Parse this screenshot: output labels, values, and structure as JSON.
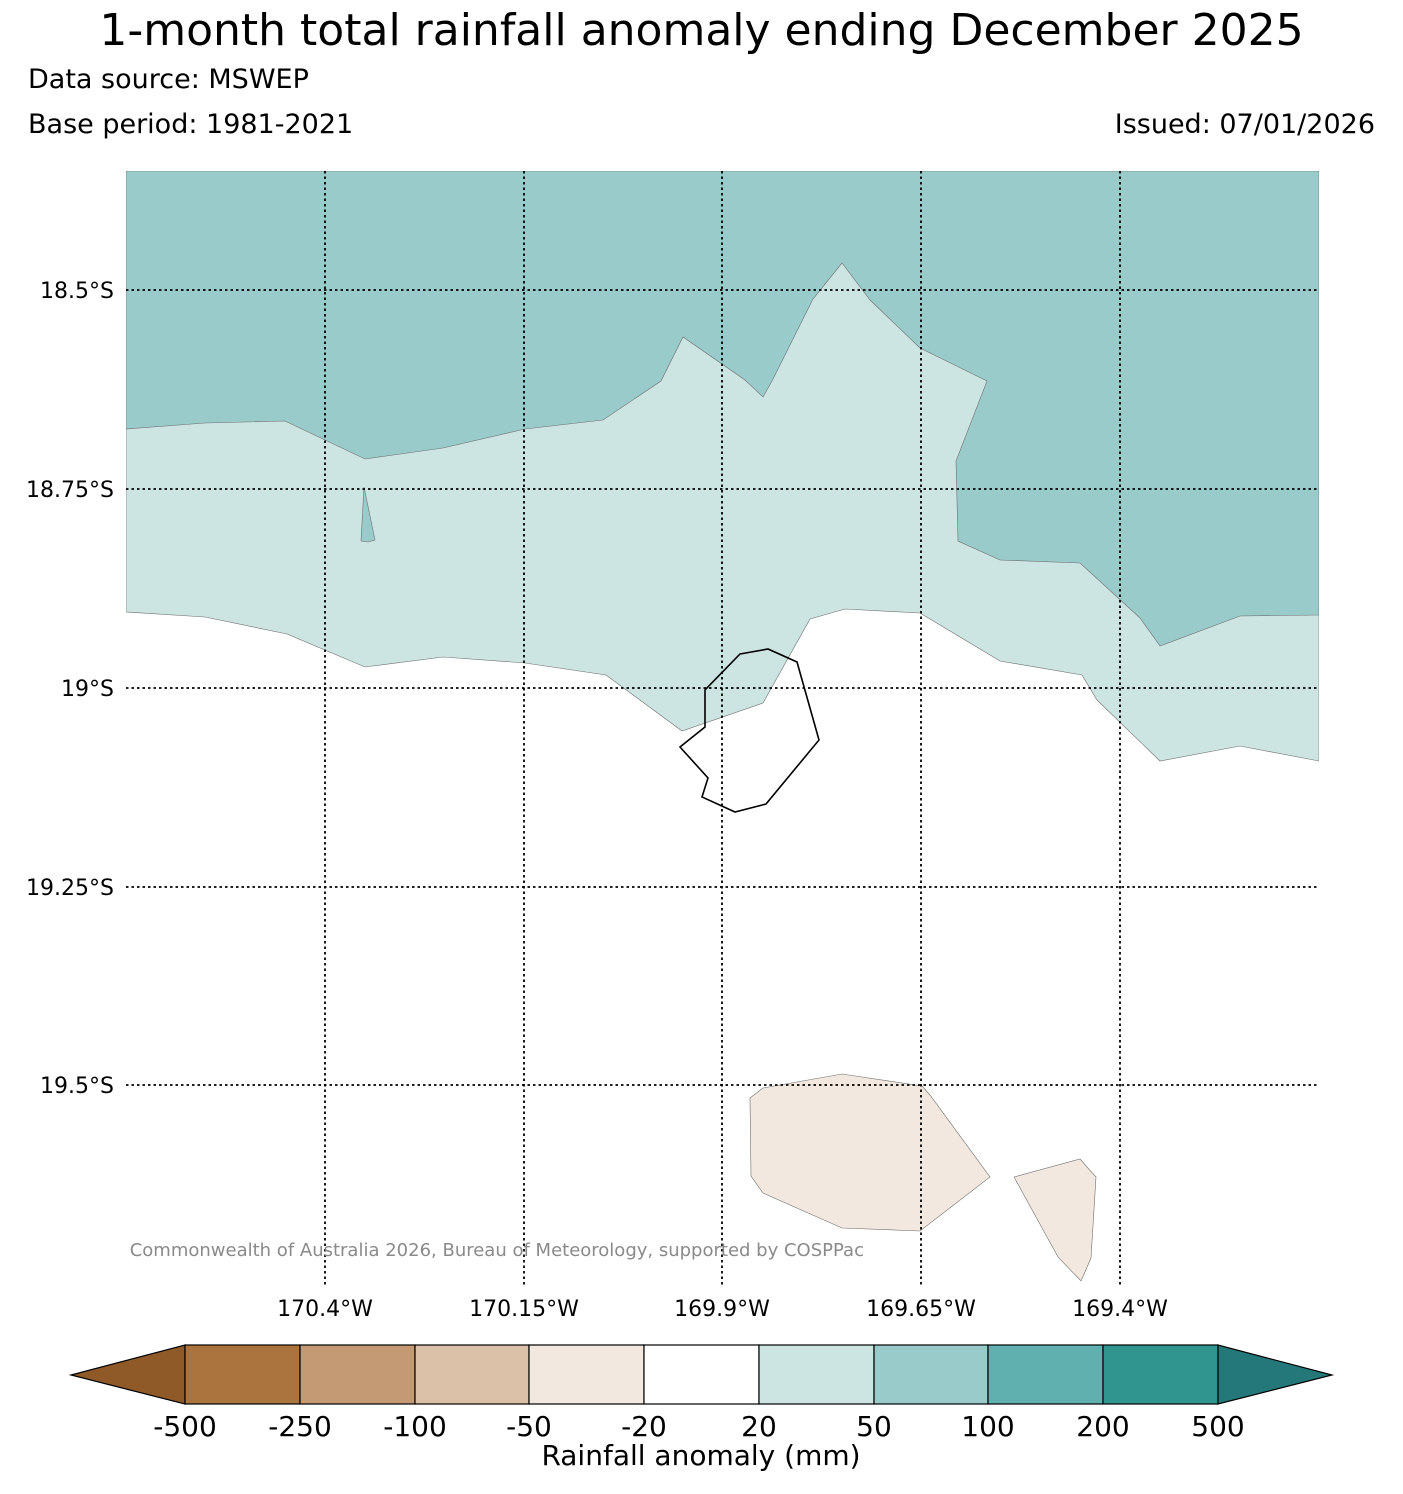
{
  "header": {
    "title": "1-month total rainfall anomaly ending December 2025",
    "source": "Data source: MSWEP",
    "base_period": "Base period: 1981-2021",
    "issued": "Issued: 07/01/2026"
  },
  "map": {
    "lat_labels": [
      "18.5°S",
      "18.75°S",
      "19°S",
      "19.25°S",
      "19.5°S"
    ],
    "lon_labels": [
      "170.4°W",
      "170.15°W",
      "169.9°W",
      "169.65°W",
      "169.4°W"
    ],
    "copyright": "© Commonwealth of Australia 2026, Bureau of Meteorology, supported by COSPPac",
    "colors": {
      "anomaly_20_50": "#cce5e3",
      "anomaly_50_100": "#9acbcb",
      "anomaly_neg20_neg50": "#f2e8df",
      "coastline": "#000000",
      "gridline": "#000000"
    }
  },
  "colorbar": {
    "label": "Rainfall anomaly (mm)",
    "ticks": [
      "-500",
      "-250",
      "-100",
      "-50",
      "-20",
      "20",
      "50",
      "100",
      "200",
      "500"
    ],
    "colors": [
      "#8f5a28",
      "#ab743e",
      "#c49a74",
      "#dbc1a8",
      "#f2e8df",
      "#ffffff",
      "#cce5e3",
      "#9acbcb",
      "#60b0b0",
      "#30958f",
      "#25787a"
    ]
  }
}
